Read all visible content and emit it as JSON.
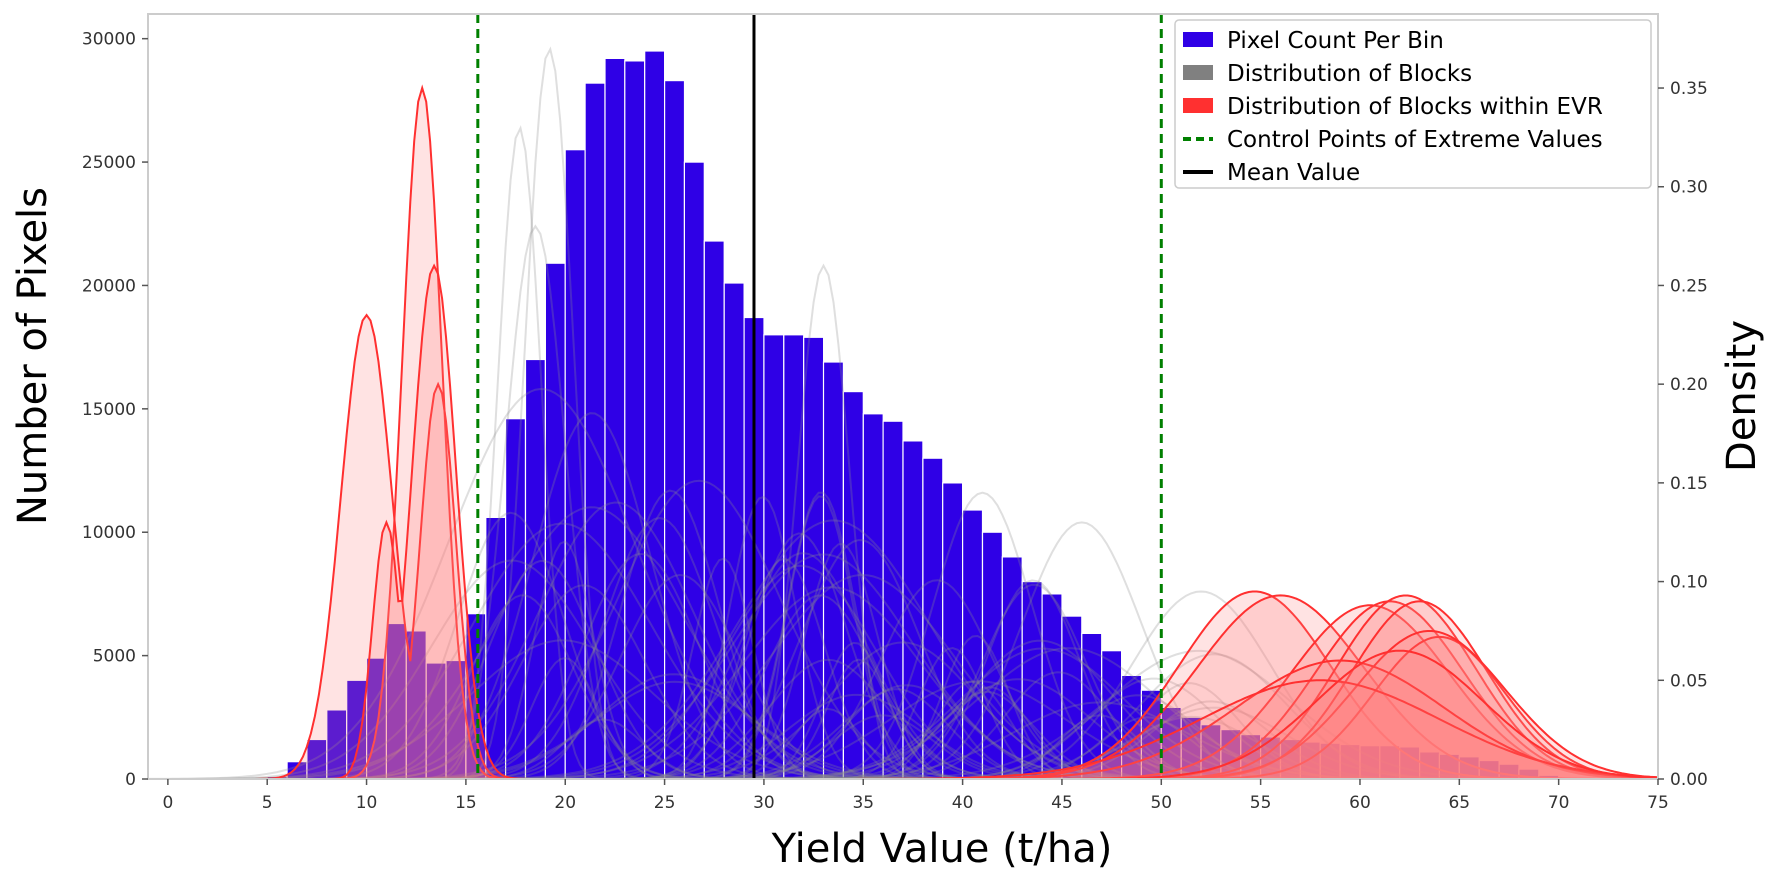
{
  "chart_data": {
    "type": "bar",
    "xlabel": "Yield Value (t/ha)",
    "ylabel": "Number of Pixels",
    "y2label": "Density",
    "xlim": [
      -1,
      75
    ],
    "ylim": [
      0,
      31000
    ],
    "y2lim": [
      0,
      0.3875
    ],
    "xticks": [
      "0",
      "5",
      "10",
      "15",
      "20",
      "25",
      "30",
      "35",
      "40",
      "45",
      "50",
      "55",
      "60",
      "65",
      "70",
      "75"
    ],
    "yticks": [
      "0",
      "5000",
      "10000",
      "15000",
      "20000",
      "25000",
      "30000"
    ],
    "y2ticks": [
      "0.00",
      "0.05",
      "0.10",
      "0.15",
      "0.20",
      "0.25",
      "0.30",
      "0.35"
    ],
    "grid": false,
    "legend_position": "top-right",
    "legend": [
      {
        "label": "Pixel Count Per Bin",
        "kind": "patch",
        "color": "#2f00e6"
      },
      {
        "label": "Distribution of Blocks",
        "kind": "patch",
        "color": "#808080"
      },
      {
        "label": "Distribution of Blocks within EVR",
        "kind": "patch",
        "color": "#ff3030"
      },
      {
        "label": "Control Points of Extreme Values",
        "kind": "dashed",
        "color": "#008000"
      },
      {
        "label": "Mean Value",
        "kind": "solid",
        "color": "#000000"
      }
    ],
    "bins": {
      "start": 5,
      "width": 1,
      "values": [
        100,
        700,
        1600,
        2800,
        4000,
        4900,
        6300,
        6000,
        4700,
        4800,
        6700,
        10600,
        14600,
        17000,
        20900,
        25500,
        28200,
        29200,
        29100,
        29500,
        28300,
        25000,
        21800,
        20100,
        18700,
        18000,
        18000,
        17900,
        16900,
        15700,
        14800,
        14500,
        13700,
        13000,
        12000,
        10900,
        10000,
        9000,
        8000,
        7500,
        6600,
        5900,
        5200,
        4200,
        3600,
        2900,
        2500,
        2200,
        2000,
        1800,
        1700,
        1600,
        1500,
        1450,
        1400,
        1350,
        1350,
        1300,
        1100,
        1000,
        900,
        750,
        600,
        400,
        150,
        50
      ]
    },
    "control_points": [
      15.6,
      50
    ],
    "mean_value": 29.5,
    "colors": {
      "bar": "#2f00e6",
      "bar_edge": "#ffffff",
      "block_kde": "#8c8c8c",
      "evr_kde": "#ff3030",
      "evr_fill": "#ff8080",
      "control": "#008000",
      "mean": "#000000",
      "axis": "#cccccc"
    },
    "evr_kdes_low": [
      {
        "mu": 12.8,
        "sigma": 1.0,
        "peak": 0.35
      },
      {
        "mu": 10.0,
        "sigma": 1.3,
        "peak": 0.235,
        "mu2": 13.6,
        "sigma2": 0.9,
        "peak2": 0.2
      },
      {
        "mu": 13.4,
        "sigma": 1.1,
        "peak": 0.26,
        "mu2": 11.0,
        "sigma2": 0.7,
        "peak2": 0.13
      }
    ],
    "evr_kdes_high": [
      {
        "mu": 54.7,
        "sigma": 3.8,
        "peak": 0.095
      },
      {
        "mu": 56.0,
        "sigma": 4.2,
        "peak": 0.093
      },
      {
        "mu": 60.5,
        "sigma": 4.0,
        "peak": 0.088
      },
      {
        "mu": 61.5,
        "sigma": 3.7,
        "peak": 0.09
      },
      {
        "mu": 62.3,
        "sigma": 3.5,
        "peak": 0.093
      },
      {
        "mu": 63.0,
        "sigma": 3.4,
        "peak": 0.09
      },
      {
        "mu": 64.0,
        "sigma": 3.3,
        "peak": 0.072
      },
      {
        "mu": 63.5,
        "sigma": 3.8,
        "peak": 0.075
      },
      {
        "mu": 59.0,
        "sigma": 5.2,
        "peak": 0.06
      },
      {
        "mu": 58.0,
        "sigma": 6.0,
        "peak": 0.05
      },
      {
        "mu": 62.0,
        "sigma": 4.2,
        "peak": 0.065
      }
    ],
    "block_kde_peaks": [
      {
        "mu": 19.2,
        "sigma": 1.2,
        "peak": 0.37
      },
      {
        "mu": 17.7,
        "sigma": 1.1,
        "peak": 0.33
      },
      {
        "mu": 18.5,
        "sigma": 1.5,
        "peak": 0.28
      },
      {
        "mu": 33.0,
        "sigma": 1.3,
        "peak": 0.26
      },
      {
        "mu": 41.0,
        "sigma": 2.5,
        "peak": 0.145
      },
      {
        "mu": 46.0,
        "sigma": 3.0,
        "peak": 0.13
      },
      {
        "mu": 52.0,
        "sigma": 3.5,
        "peak": 0.095
      }
    ]
  }
}
